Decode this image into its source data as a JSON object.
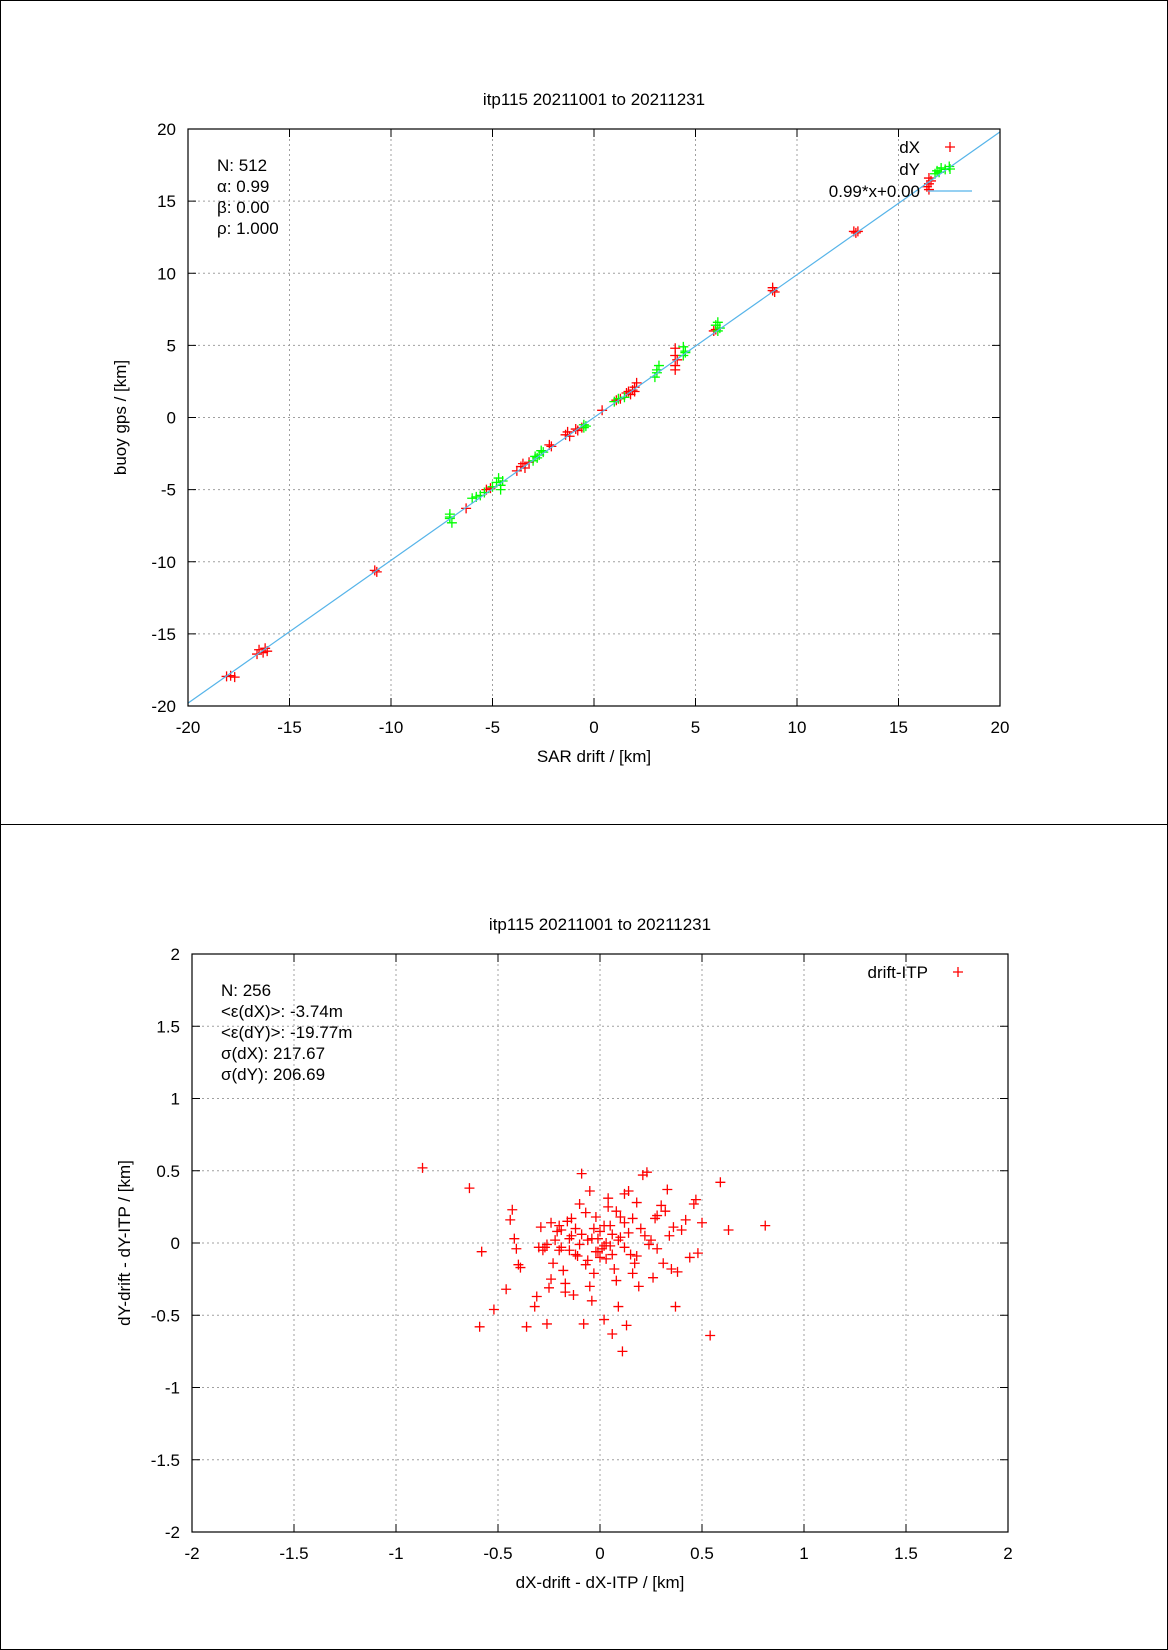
{
  "chart_data": [
    {
      "type": "scatter",
      "title": "itp115 20211001 to 20211231",
      "xlabel": "SAR drift / [km]",
      "ylabel": "buoy gps / [km]",
      "xlim": [
        -20,
        20
      ],
      "ylim": [
        -20,
        20
      ],
      "xticks": [
        "-20",
        "-15",
        "-10",
        "-5",
        "0",
        "5",
        "10",
        "15",
        "20"
      ],
      "yticks": [
        "-20",
        "-15",
        "-10",
        "-5",
        "0",
        "5",
        "10",
        "15",
        "20"
      ],
      "grid": true,
      "legend_position": "top-right",
      "stats": [
        "N: 512",
        "α: 0.99",
        "β: 0.00",
        "ρ: 1.000"
      ],
      "series": [
        {
          "name": "dX",
          "color": "#ff0000",
          "marker": "plus",
          "points": [
            [
              -17.9,
              -17.9
            ],
            [
              -18.1,
              -17.95
            ],
            [
              -17.7,
              -18.0
            ],
            [
              -16.5,
              -16.1
            ],
            [
              -16.3,
              -16.3
            ],
            [
              -16.2,
              -16.0
            ],
            [
              -16.6,
              -16.4
            ],
            [
              -16.1,
              -16.2
            ],
            [
              -10.8,
              -10.6
            ],
            [
              -10.7,
              -10.7
            ],
            [
              -6.3,
              -6.3
            ],
            [
              -5.3,
              -5.0
            ],
            [
              -5.1,
              -4.9
            ],
            [
              -3.8,
              -3.7
            ],
            [
              -3.6,
              -3.4
            ],
            [
              -3.5,
              -3.2
            ],
            [
              -3.2,
              -3.1
            ],
            [
              -3.4,
              -3.5
            ],
            [
              -2.2,
              -1.9
            ],
            [
              -2.1,
              -2.0
            ],
            [
              -1.4,
              -1.2
            ],
            [
              -1.3,
              -1.0
            ],
            [
              -1.2,
              -1.3
            ],
            [
              -0.8,
              -0.9
            ],
            [
              -0.6,
              -0.7
            ],
            [
              -0.9,
              -0.8
            ],
            [
              0.4,
              0.5
            ],
            [
              1.1,
              1.2
            ],
            [
              1.3,
              1.3
            ],
            [
              1.6,
              1.7
            ],
            [
              1.8,
              1.6
            ],
            [
              1.9,
              1.9
            ],
            [
              2.0,
              2.1
            ],
            [
              2.1,
              2.4
            ],
            [
              2.0,
              1.8
            ],
            [
              1.7,
              1.8
            ],
            [
              4.0,
              4.8
            ],
            [
              4.0,
              4.3
            ],
            [
              4.1,
              4.0
            ],
            [
              4.0,
              3.6
            ],
            [
              4.0,
              3.3
            ],
            [
              5.9,
              6.0
            ],
            [
              6.0,
              6.1
            ],
            [
              8.8,
              9.0
            ],
            [
              8.9,
              8.7
            ],
            [
              8.8,
              8.8
            ],
            [
              12.8,
              12.9
            ],
            [
              12.9,
              12.8
            ],
            [
              13.0,
              12.9
            ],
            [
              16.5,
              16.6
            ],
            [
              16.5,
              16.2
            ],
            [
              16.4,
              16.0
            ],
            [
              16.5,
              15.8
            ],
            [
              16.6,
              16.4
            ]
          ]
        },
        {
          "name": "dY",
          "color": "#00ff00",
          "marker": "plus",
          "points": [
            [
              -7.1,
              -6.7
            ],
            [
              -7.1,
              -7.0
            ],
            [
              -7.0,
              -7.3
            ],
            [
              -7.1,
              -6.9
            ],
            [
              -6.0,
              -5.6
            ],
            [
              -5.8,
              -5.5
            ],
            [
              -5.6,
              -5.4
            ],
            [
              -5.4,
              -5.2
            ],
            [
              -5.0,
              -4.8
            ],
            [
              -4.8,
              -4.5
            ],
            [
              -4.6,
              -4.7
            ],
            [
              -4.7,
              -4.2
            ],
            [
              -4.5,
              -4.4
            ],
            [
              -4.6,
              -5.0
            ],
            [
              -3.0,
              -3.0
            ],
            [
              -2.8,
              -2.8
            ],
            [
              -2.7,
              -2.6
            ],
            [
              -2.5,
              -2.4
            ],
            [
              -2.9,
              -2.7
            ],
            [
              -2.6,
              -2.3
            ],
            [
              -0.5,
              -0.7
            ],
            [
              -0.4,
              -0.6
            ],
            [
              -0.5,
              -0.5
            ],
            [
              1.0,
              1.1
            ],
            [
              1.2,
              1.3
            ],
            [
              1.5,
              1.4
            ],
            [
              3.1,
              3.1
            ],
            [
              3.0,
              2.8
            ],
            [
              3.2,
              3.6
            ],
            [
              3.1,
              3.3
            ],
            [
              4.4,
              4.3
            ],
            [
              4.5,
              4.6
            ],
            [
              4.4,
              4.9
            ],
            [
              4.5,
              4.5
            ],
            [
              6.1,
              6.0
            ],
            [
              6.2,
              6.2
            ],
            [
              6.0,
              6.4
            ],
            [
              6.1,
              6.6
            ],
            [
              16.9,
              17.1
            ],
            [
              17.1,
              17.3
            ],
            [
              17.3,
              17.2
            ],
            [
              17.0,
              17.0
            ],
            [
              17.5,
              17.4
            ],
            [
              16.8,
              16.9
            ]
          ]
        },
        {
          "name": "0.99*x+0.00",
          "color": "#56b4e9",
          "type": "line",
          "slope": 0.99,
          "intercept": 0.0
        }
      ]
    },
    {
      "type": "scatter",
      "title": "itp115 20211001 to 20211231",
      "xlabel": "dX-drift - dX-ITP / [km]",
      "ylabel": "dY-drift - dY-ITP / [km]",
      "xlim": [
        -2,
        2
      ],
      "ylim": [
        -2,
        2
      ],
      "xticks": [
        "-2",
        "-1.5",
        "-1",
        "-0.5",
        "0",
        "0.5",
        "1",
        "1.5",
        "2"
      ],
      "yticks": [
        "-2",
        "-1.5",
        "-1",
        "-0.5",
        "0",
        "0.5",
        "1",
        "1.5",
        "2"
      ],
      "grid": true,
      "legend_position": "top-right",
      "stats": [
        "N: 256",
        "<ε(dX)>:  -3.74m",
        "<ε(dY)>: -19.77m",
        "σ(dX):  217.67",
        "σ(dY):  206.69"
      ],
      "series": [
        {
          "name": "drift-ITP",
          "color": "#ff0000",
          "marker": "plus",
          "points": [
            [
              -0.87,
              0.52
            ],
            [
              -0.64,
              0.38
            ],
            [
              -0.58,
              -0.06
            ],
            [
              -0.59,
              -0.58
            ],
            [
              -0.52,
              -0.46
            ],
            [
              -0.46,
              -0.32
            ],
            [
              -0.44,
              0.16
            ],
            [
              -0.43,
              0.23
            ],
            [
              -0.42,
              0.03
            ],
            [
              -0.41,
              -0.04
            ],
            [
              -0.4,
              -0.15
            ],
            [
              -0.39,
              -0.17
            ],
            [
              -0.36,
              -0.58
            ],
            [
              -0.32,
              -0.44
            ],
            [
              -0.31,
              -0.37
            ],
            [
              -0.29,
              0.11
            ],
            [
              -0.28,
              -0.05
            ],
            [
              -0.27,
              -0.03
            ],
            [
              -0.26,
              -0.01
            ],
            [
              -0.25,
              -0.31
            ],
            [
              -0.24,
              -0.25
            ],
            [
              -0.23,
              -0.14
            ],
            [
              -0.22,
              0.02
            ],
            [
              -0.21,
              0.08
            ],
            [
              -0.2,
              0.12
            ],
            [
              -0.19,
              -0.03
            ],
            [
              -0.18,
              -0.19
            ],
            [
              -0.17,
              -0.28
            ],
            [
              -0.16,
              0.15
            ],
            [
              -0.15,
              -0.05
            ],
            [
              -0.14,
              0.05
            ],
            [
              -0.13,
              -0.36
            ],
            [
              -0.12,
              0.1
            ],
            [
              -0.11,
              -0.09
            ],
            [
              -0.1,
              -0.01
            ],
            [
              -0.09,
              0.48
            ],
            [
              -0.08,
              -0.56
            ],
            [
              -0.07,
              0.21
            ],
            [
              -0.06,
              -0.12
            ],
            [
              -0.05,
              0.36
            ],
            [
              -0.04,
              0.03
            ],
            [
              -0.03,
              -0.21
            ],
            [
              -0.02,
              0.18
            ],
            [
              -0.01,
              -0.06
            ],
            [
              0.0,
              0.08
            ],
            [
              0.01,
              -0.04
            ],
            [
              0.02,
              0.12
            ],
            [
              0.03,
              -0.11
            ],
            [
              0.04,
              0.25
            ],
            [
              0.05,
              -0.02
            ],
            [
              0.06,
              0.06
            ],
            [
              0.07,
              -0.18
            ],
            [
              0.08,
              0.22
            ],
            [
              0.09,
              -0.44
            ],
            [
              0.1,
              0.04
            ],
            [
              0.11,
              -0.75
            ],
            [
              0.12,
              0.14
            ],
            [
              0.13,
              -0.57
            ],
            [
              0.14,
              0.36
            ],
            [
              0.15,
              -0.08
            ],
            [
              0.16,
              0.17
            ],
            [
              0.17,
              -0.14
            ],
            [
              0.18,
              0.28
            ],
            [
              0.19,
              -0.3
            ],
            [
              0.2,
              0.1
            ],
            [
              0.21,
              0.47
            ],
            [
              0.23,
              0.49
            ],
            [
              0.24,
              -0.01
            ],
            [
              0.25,
              0.02
            ],
            [
              0.26,
              -0.24
            ],
            [
              0.27,
              0.17
            ],
            [
              0.28,
              -0.04
            ],
            [
              0.3,
              0.26
            ],
            [
              0.31,
              -0.14
            ],
            [
              0.32,
              0.22
            ],
            [
              0.33,
              0.37
            ],
            [
              0.34,
              0.05
            ],
            [
              0.35,
              -0.18
            ],
            [
              0.36,
              0.11
            ],
            [
              0.37,
              -0.44
            ],
            [
              0.38,
              -0.2
            ],
            [
              0.4,
              0.09
            ],
            [
              0.42,
              0.16
            ],
            [
              0.44,
              -0.1
            ],
            [
              0.46,
              0.27
            ],
            [
              0.47,
              0.3
            ],
            [
              0.48,
              -0.07
            ],
            [
              0.5,
              0.14
            ],
            [
              0.54,
              -0.64
            ],
            [
              0.59,
              0.42
            ],
            [
              0.63,
              0.09
            ],
            [
              0.81,
              0.12
            ],
            [
              -0.02,
              -0.06
            ],
            [
              0.0,
              -0.1
            ],
            [
              0.03,
              0.0
            ],
            [
              -0.06,
              0.02
            ],
            [
              -0.12,
              -0.08
            ],
            [
              0.06,
              -0.08
            ],
            [
              -0.03,
              0.1
            ],
            [
              0.09,
              0.02
            ],
            [
              -0.09,
              0.06
            ],
            [
              0.02,
              -0.02
            ],
            [
              -0.15,
              0.03
            ],
            [
              0.12,
              -0.03
            ],
            [
              -0.01,
              0.03
            ],
            [
              0.05,
              0.12
            ],
            [
              -0.2,
              -0.05
            ],
            [
              0.14,
              0.07
            ],
            [
              -0.07,
              -0.15
            ],
            [
              0.18,
              -0.09
            ],
            [
              -0.24,
              0.14
            ],
            [
              0.22,
              0.05
            ],
            [
              -0.17,
              -0.34
            ],
            [
              0.08,
              -0.26
            ],
            [
              -0.1,
              0.27
            ],
            [
              0.02,
              -0.53
            ],
            [
              -0.3,
              -0.03
            ],
            [
              0.28,
              0.19
            ],
            [
              -0.05,
              -0.3
            ],
            [
              0.12,
              0.34
            ],
            [
              -0.26,
              -0.56
            ],
            [
              0.04,
              0.31
            ],
            [
              -0.14,
              0.17
            ],
            [
              0.16,
              -0.21
            ],
            [
              -0.19,
              0.09
            ],
            [
              0.1,
              0.18
            ],
            [
              -0.04,
              -0.4
            ],
            [
              0.06,
              -0.63
            ]
          ]
        }
      ]
    }
  ]
}
